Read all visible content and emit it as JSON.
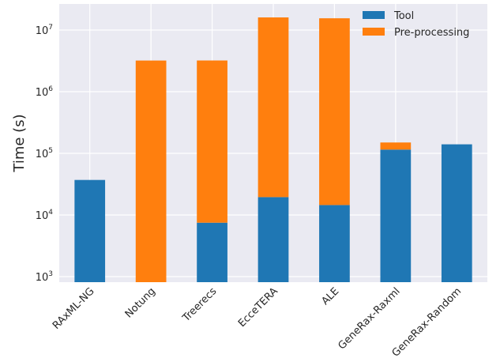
{
  "chart_data": {
    "type": "bar",
    "stacked": true,
    "title": "",
    "xlabel": "",
    "ylabel": "Time (s)",
    "yscale": "log",
    "ylim": [
      800,
      25000000
    ],
    "yticks": [
      {
        "value": 1000,
        "base": "10",
        "exp": "3"
      },
      {
        "value": 10000,
        "base": "10",
        "exp": "4"
      },
      {
        "value": 100000,
        "base": "10",
        "exp": "5"
      },
      {
        "value": 1000000,
        "base": "10",
        "exp": "6"
      },
      {
        "value": 10000000,
        "base": "10",
        "exp": "7"
      }
    ],
    "categories": [
      "RAxML-NG",
      "Notung",
      "Treerecs",
      "EcceTERA",
      "ALE",
      "GeneRax-Raxml",
      "GeneRax-Random"
    ],
    "series": [
      {
        "name": "Tool",
        "color": "#1f77b4",
        "values": [
          37000,
          0,
          7500,
          19500,
          14500,
          115000,
          140000
        ]
      },
      {
        "name": "Pre-processing",
        "color": "#ff7f0e",
        "values": [
          0,
          3200000,
          3200000,
          16000000,
          15500000,
          35000,
          0
        ]
      }
    ],
    "grid": true,
    "legend": "top-right"
  }
}
